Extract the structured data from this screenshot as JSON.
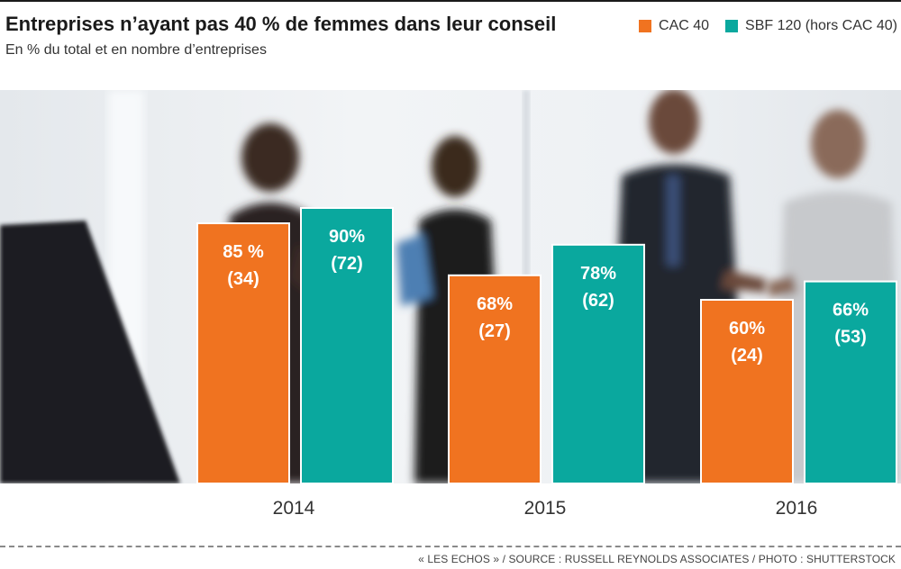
{
  "header": {
    "title": "Entreprises n’ayant pas 40 % de femmes dans leur conseil",
    "subtitle": "En % du total et en nombre d’entreprises"
  },
  "legend": {
    "items": [
      {
        "label": "CAC 40",
        "color": "#f07320"
      },
      {
        "label": "SBF 120 (hors CAC 40)",
        "color": "#0aa89e"
      }
    ]
  },
  "footer": {
    "source": "« LES ECHOS » / SOURCE : RUSSELL REYNOLDS ASSOCIATES / PHOTO : SHUTTERSTOCK"
  },
  "chart_data": {
    "type": "bar",
    "title": "Entreprises n’ayant pas 40 % de femmes dans leur conseil",
    "subtitle": "En % du total et en nombre d’entreprises",
    "categories": [
      "2014",
      "2015",
      "2016"
    ],
    "ylim": [
      0,
      100
    ],
    "grid": false,
    "legend_position": "top-right",
    "series": [
      {
        "name": "CAC 40",
        "color": "#f07320",
        "values": [
          85,
          68,
          60
        ],
        "counts": [
          34,
          27,
          24
        ],
        "labels": [
          "85 %",
          "68%",
          "60%"
        ],
        "count_labels": [
          "(34)",
          "(27)",
          "(24)"
        ]
      },
      {
        "name": "SBF 120 (hors CAC 40)",
        "color": "#0aa89e",
        "values": [
          90,
          78,
          66
        ],
        "counts": [
          72,
          62,
          53
        ],
        "labels": [
          "90%",
          "78%",
          "66%"
        ],
        "count_labels": [
          "(72)",
          "(62)",
          "(53)"
        ]
      }
    ]
  }
}
